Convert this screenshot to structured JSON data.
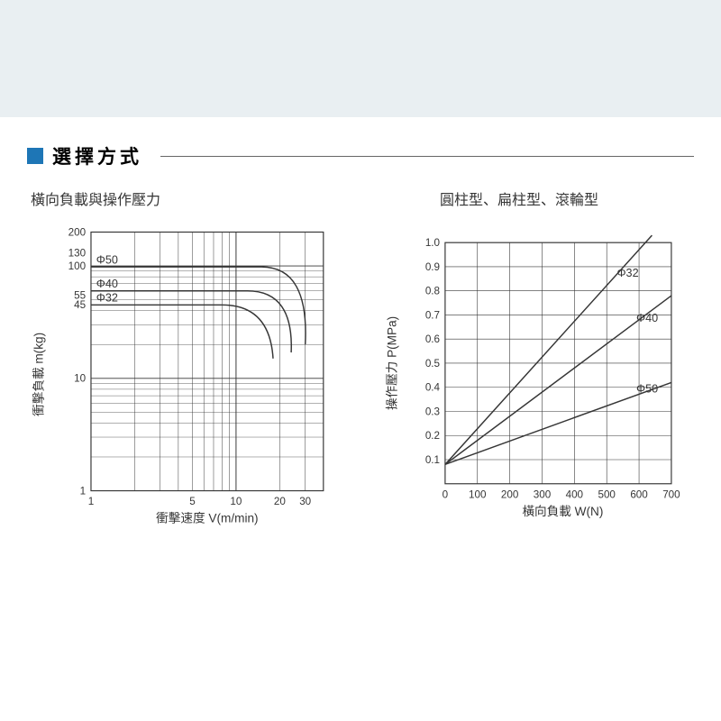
{
  "section": {
    "title": "選擇方式"
  },
  "left_chart": {
    "type": "line-loglog",
    "subtitle": "橫向負載與操作壓力",
    "xlabel": "衝擊速度  V(m/min)",
    "ylabel": "衝擊負載  m(kg)",
    "x_ticks": [
      "1",
      "5",
      "10",
      "20",
      "30"
    ],
    "y_ticks": [
      "1",
      "10",
      "45",
      "55",
      "100",
      "130",
      "200"
    ],
    "border_color": "#363636",
    "grid_color": "#363636",
    "line_color": "#363636",
    "background_color": "#ffffff",
    "label_fontsize": 14,
    "tick_fontsize": 12,
    "series": [
      {
        "label": "Φ32",
        "plateau_y": 45,
        "knee_x": 8,
        "end_x": 18,
        "end_y": 15
      },
      {
        "label": "Φ40",
        "plateau_y": 60,
        "knee_x": 12,
        "end_x": 24,
        "end_y": 17
      },
      {
        "label": "Φ50",
        "plateau_y": 98,
        "knee_x": 15,
        "end_x": 30,
        "end_y": 20
      }
    ],
    "x_range": [
      1,
      40
    ],
    "y_range": [
      1,
      200
    ]
  },
  "right_chart": {
    "type": "line",
    "subtitle": "圓柱型、扁柱型、滾輪型",
    "xlabel": "橫向負載   W(N)",
    "ylabel": "操作壓力   P(MPa)",
    "x_ticks": [
      "0",
      "100",
      "200",
      "300",
      "400",
      "500",
      "600",
      "700"
    ],
    "y_ticks": [
      "0.1",
      "0.2",
      "0.3",
      "0.4",
      "0.5",
      "0.6",
      "0.7",
      "0.8",
      "0.9",
      "1.0"
    ],
    "border_color": "#363636",
    "grid_color": "#363636",
    "line_color": "#363636",
    "background_color": "#ffffff",
    "label_fontsize": 14,
    "tick_fontsize": 12,
    "x_range": [
      0,
      700
    ],
    "y_range": [
      0,
      1.0
    ],
    "origin_y": 0.08,
    "series": [
      {
        "label": "Φ32",
        "x_end": 640,
        "y_end": 1.03
      },
      {
        "label": "Φ40",
        "x_end": 700,
        "y_end": 0.78
      },
      {
        "label": "Φ50",
        "x_end": 700,
        "y_end": 0.42
      }
    ]
  }
}
